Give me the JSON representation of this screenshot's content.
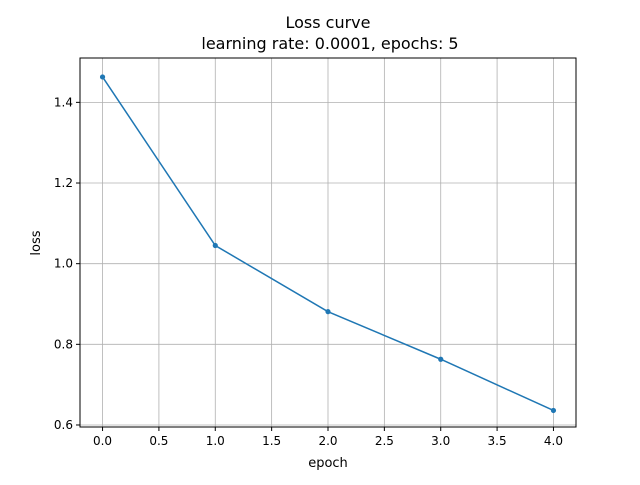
{
  "chart_data": {
    "type": "line",
    "title": "Loss curve",
    "subtitle": "learning rate: 0.0001, epochs: 5",
    "xlabel": "epoch",
    "ylabel": "loss",
    "xlim": [
      -0.2,
      4.2
    ],
    "ylim": [
      0.595,
      1.51
    ],
    "xticks": [
      0.0,
      0.5,
      1.0,
      1.5,
      2.0,
      2.5,
      3.0,
      3.5,
      4.0
    ],
    "xtick_labels": [
      "0.0",
      "0.5",
      "1.0",
      "1.5",
      "2.0",
      "2.5",
      "3.0",
      "3.5",
      "4.0"
    ],
    "yticks": [
      0.6,
      0.8,
      1.0,
      1.2,
      1.4
    ],
    "ytick_labels": [
      "0.6",
      "0.8",
      "1.0",
      "1.2",
      "1.4"
    ],
    "grid": true,
    "series": [
      {
        "color": "#1f77b4",
        "marker": "dot",
        "x": [
          0,
          1,
          2,
          3,
          4
        ],
        "y": [
          1.463,
          1.045,
          0.881,
          0.763,
          0.636
        ]
      }
    ]
  }
}
